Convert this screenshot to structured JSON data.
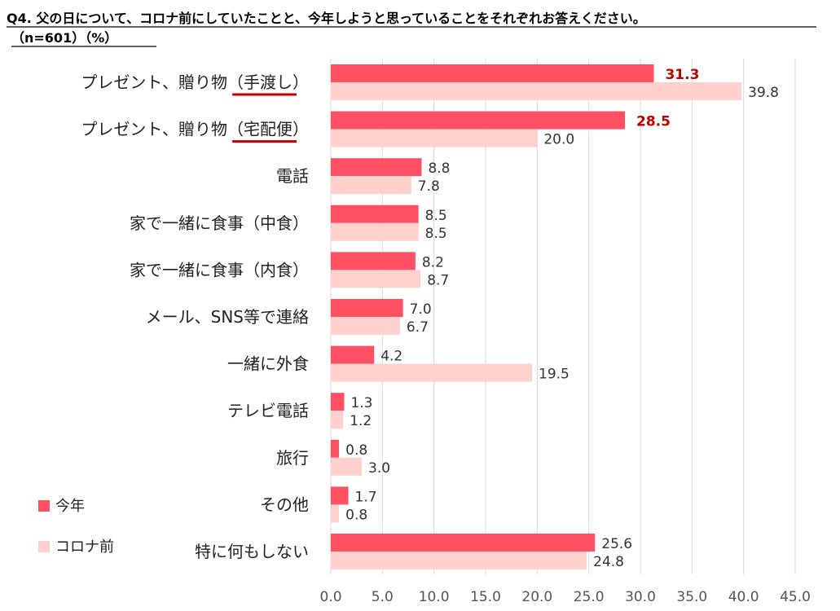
{
  "colors": {
    "this_year": "#ff5064",
    "before_corona": "#ffd0cc",
    "highlight": "#c00000",
    "underline": "#c00000",
    "grid": "#d9d9d9"
  },
  "chart_data": {
    "type": "bar",
    "orientation": "horizontal",
    "title_line1": "Q4. 父の日について、コロナ前にしていたことと、今年しようと思っていることをそれぞれお答えください。",
    "title_line2": "（n=601）（%）",
    "categories": [
      "プレゼント、贈り物（手渡し）",
      "プレゼント、贈り物（宅配便）",
      "電話",
      "家で一緒に食事（中食）",
      "家で一緒に食事（内食）",
      "メール、SNS等で連絡",
      "一緒に外食",
      "テレビ電話",
      "旅行",
      "その他",
      "特に何もしない"
    ],
    "series": [
      {
        "name": "今年",
        "values": [
          31.3,
          28.5,
          8.8,
          8.5,
          8.2,
          7.0,
          4.2,
          1.3,
          0.8,
          1.7,
          25.6
        ]
      },
      {
        "name": "コロナ前",
        "values": [
          39.8,
          20.0,
          7.8,
          8.5,
          8.7,
          6.7,
          19.5,
          1.2,
          3.0,
          0.8,
          24.8
        ]
      }
    ],
    "highlighted_labels": [
      "31.3",
      "28.5"
    ],
    "underlined_phrases": [
      "（手渡し）",
      "（宅配便）"
    ],
    "xlim": [
      0,
      45
    ],
    "xticks": [
      "0.0",
      "5.0",
      "10.0",
      "15.0",
      "20.0",
      "25.0",
      "30.0",
      "35.0",
      "40.0",
      "45.0"
    ],
    "grid": true,
    "legend_position": "bottom-left"
  }
}
